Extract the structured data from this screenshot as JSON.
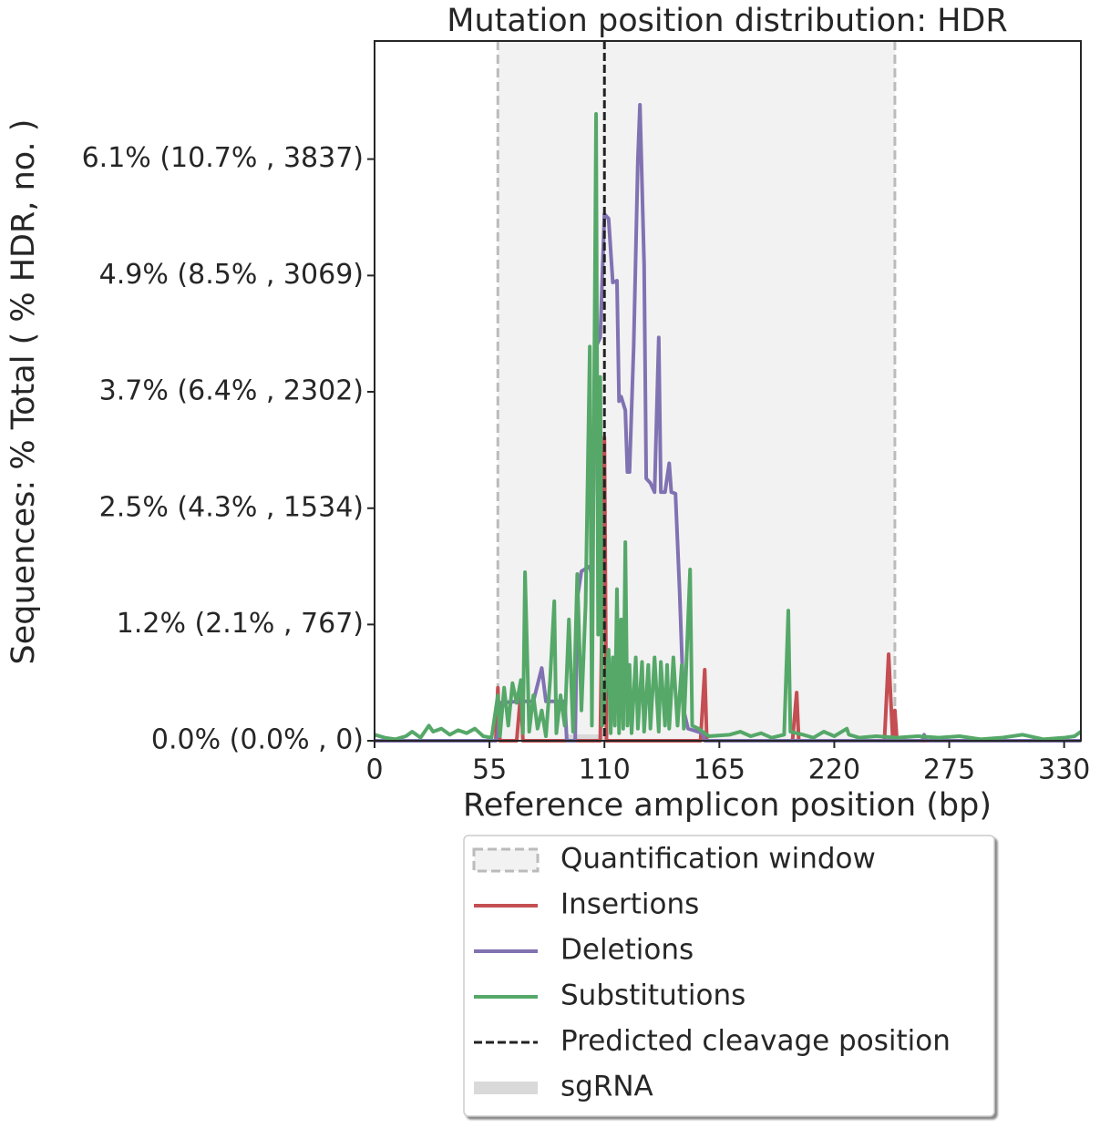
{
  "chart_data": {
    "type": "line",
    "title": "Mutation position distribution: HDR",
    "x_label": "Reference amplicon position (bp)",
    "y_label": "Sequences: % Total ( % HDR, no. )",
    "xlim": [
      0,
      338
    ],
    "xticks": [
      0,
      55,
      110,
      165,
      220,
      275,
      330
    ],
    "ylim": [
      0,
      4616
    ],
    "yticks": [
      {
        "value": 0,
        "label": "0.0% (0.0% , 0)"
      },
      {
        "value": 767,
        "label": "1.2% (2.1% , 767)"
      },
      {
        "value": 1534,
        "label": "2.5% (4.3% , 1534)"
      },
      {
        "value": 2302,
        "label": "3.7% (6.4% , 2302)"
      },
      {
        "value": 3069,
        "label": "4.9% (8.5% , 3069)"
      },
      {
        "value": 3837,
        "label": "6.1% (10.7% , 3837)"
      }
    ],
    "quantification_window": {
      "name": "Quantification window",
      "range": [
        59,
        249
      ],
      "color": "#f2f2f2"
    },
    "series": [
      {
        "name": "Insertions",
        "color": "#c44e52",
        "x": [
          0,
          58,
          59,
          60,
          68,
          70,
          71,
          108,
          110,
          111,
          156,
          158,
          159,
          200,
          202,
          203,
          244,
          246,
          248,
          249,
          250,
          338
        ],
        "values": [
          0,
          0,
          349,
          0,
          0,
          320,
          0,
          0,
          2001,
          0,
          0,
          469,
          0,
          0,
          318,
          0,
          0,
          571,
          0,
          200,
          0,
          0
        ]
      },
      {
        "name": "Deletions",
        "color": "#8172b2",
        "x": [
          0,
          58,
          59,
          60,
          69,
          76,
          80,
          82,
          91,
          92,
          96,
          97,
          99,
          103,
          104,
          106,
          108,
          110,
          112,
          114,
          116,
          117,
          118,
          120,
          121,
          122,
          124,
          126,
          127,
          129,
          130,
          132,
          134,
          136,
          137,
          139,
          141,
          142,
          144,
          146,
          148,
          150,
          157,
          158,
          262,
          263,
          264,
          338
        ],
        "values": [
          0,
          0,
          40,
          250,
          260,
          260,
          480,
          260,
          260,
          0,
          0,
          938,
          1118,
          1150,
          1080,
          2600,
          2660,
          3474,
          3444,
          3023,
          3035,
          2240,
          2270,
          2180,
          1773,
          1773,
          2602,
          3834,
          4195,
          3140,
          1730,
          1700,
          1640,
          2660,
          1640,
          1640,
          1830,
          1640,
          1630,
          980,
          198,
          80,
          50,
          0,
          0,
          40,
          0,
          0
        ]
      },
      {
        "name": "Substitutions",
        "color": "#55a868",
        "x": [
          0,
          5,
          10,
          15,
          18,
          22,
          26,
          28,
          32,
          36,
          40,
          44,
          48,
          52,
          56,
          59,
          60,
          62,
          64,
          66,
          68,
          70,
          71,
          72,
          74,
          76,
          78,
          80,
          82,
          84,
          86,
          87,
          89,
          91,
          93,
          95,
          97,
          99,
          101,
          103,
          104,
          106,
          107,
          108,
          109,
          111,
          112,
          113,
          114,
          115,
          116,
          117,
          118,
          119,
          120,
          121,
          122,
          123,
          125,
          126,
          128,
          129,
          131,
          132,
          134,
          136,
          137,
          139,
          140,
          141,
          143,
          145,
          147,
          148,
          151,
          152,
          155,
          160,
          170,
          175,
          180,
          185,
          190,
          196,
          198,
          199,
          205,
          210,
          215,
          220,
          226,
          227,
          232,
          240,
          250,
          260,
          270,
          280,
          290,
          300,
          310,
          320,
          330,
          335,
          338
        ],
        "values": [
          40,
          20,
          10,
          30,
          60,
          20,
          100,
          60,
          80,
          40,
          70,
          50,
          80,
          30,
          20,
          300,
          30,
          350,
          100,
          380,
          250,
          400,
          50,
          1112,
          60,
          300,
          80,
          200,
          30,
          400,
          920,
          50,
          300,
          100,
          800,
          60,
          1100,
          200,
          900,
          2600,
          100,
          4135,
          700,
          2400,
          100,
          400,
          600,
          50,
          550,
          100,
          1000,
          50,
          800,
          80,
          1310,
          100,
          500,
          50,
          550,
          80,
          520,
          60,
          500,
          80,
          550,
          60,
          520,
          100,
          500,
          80,
          550,
          100,
          500,
          80,
          1130,
          100,
          80,
          30,
          40,
          60,
          30,
          50,
          20,
          40,
          859,
          60,
          40,
          20,
          60,
          30,
          80,
          40,
          20,
          30,
          20,
          30,
          20,
          30,
          10,
          20,
          40,
          10,
          20,
          30,
          60
        ]
      }
    ],
    "cleavage": {
      "name": "Predicted cleavage position",
      "x": 110,
      "color": "#222222"
    },
    "sgrna": {
      "name": "sgRNA",
      "range": [
        91,
        111
      ],
      "color": "#d9d9d9"
    }
  }
}
